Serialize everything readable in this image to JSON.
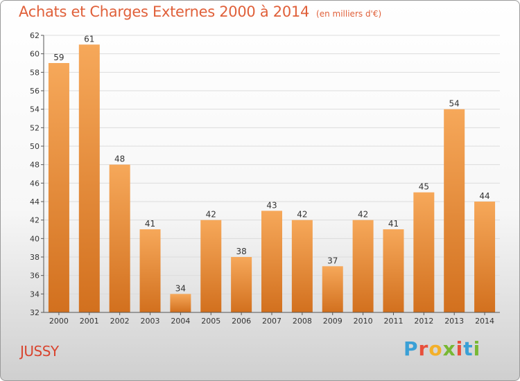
{
  "header": {
    "title": "Achats et Charges Externes 2000 à 2014",
    "unit": "(en milliers d'€)"
  },
  "footer": {
    "location": "JUSSY",
    "logo_text": "Proxiti"
  },
  "colors": {
    "title": "#e0603a",
    "bar_top": "#f6a85a",
    "bar_bottom": "#d2701e",
    "location": "#d9442e",
    "logo": [
      "#3aa0d6",
      "#e84f3b",
      "#f3b02a",
      "#78b833",
      "#e84f3b",
      "#3aa0d6",
      "#78b833"
    ]
  },
  "chart_data": {
    "type": "bar",
    "title": "Achats et Charges Externes 2000 à 2014",
    "subtitle": "(en milliers d'€)",
    "categories": [
      "2000",
      "2001",
      "2002",
      "2003",
      "2004",
      "2005",
      "2006",
      "2007",
      "2008",
      "2009",
      "2010",
      "2011",
      "2012",
      "2013",
      "2014"
    ],
    "values": [
      59,
      61,
      48,
      41,
      34,
      42,
      38,
      43,
      42,
      37,
      42,
      41,
      45,
      54,
      44
    ],
    "ylim": [
      32,
      62
    ],
    "yticks": [
      32,
      34,
      36,
      38,
      40,
      42,
      44,
      46,
      48,
      50,
      52,
      54,
      56,
      58,
      60,
      62
    ],
    "grid": true,
    "data_labels": true
  }
}
